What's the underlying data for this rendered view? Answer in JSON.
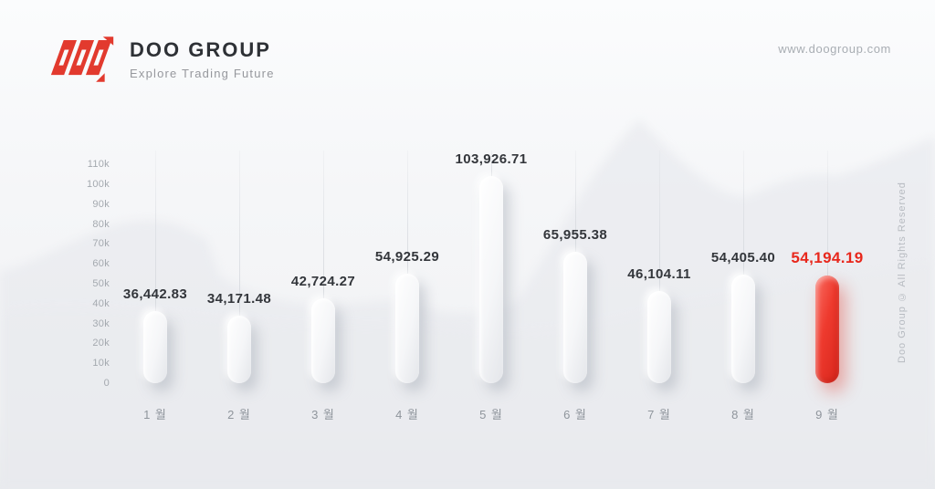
{
  "header": {
    "brand": "DOO GROUP",
    "tagline": "Explore Trading Future",
    "website": "www.doogroup.com",
    "logo_icon": "doo-triple-d-mark",
    "brand_red": "#E23A2E"
  },
  "watermark": "Doo Group © All Rights Reserved",
  "chart_data": {
    "type": "bar",
    "title": "",
    "xlabel": "",
    "ylabel": "",
    "categories": [
      "1 월",
      "2 월",
      "3 월",
      "4 월",
      "5 월",
      "6 월",
      "7 월",
      "8 월",
      "9 월"
    ],
    "values": [
      36442.83,
      34171.48,
      42724.27,
      54925.29,
      103926.71,
      65955.38,
      46104.11,
      54405.4,
      54194.19
    ],
    "value_labels": [
      "36,442.83",
      "34,171.48",
      "42,724.27",
      "54,925.29",
      "103,926.71",
      "65,955.38",
      "46,104.11",
      "54,405.40",
      "54,194.19"
    ],
    "y_ticks": [
      "0",
      "10k",
      "20k",
      "30k",
      "40k",
      "50k",
      "60k",
      "70k",
      "80k",
      "90k",
      "100k",
      "110k"
    ],
    "ylim": [
      0,
      110000
    ],
    "highlight_index": 8,
    "highlight_color": "#E8271C",
    "bar_color": "#F2F3F5",
    "legend": "none",
    "grid": "vertical guide line above each bar"
  }
}
